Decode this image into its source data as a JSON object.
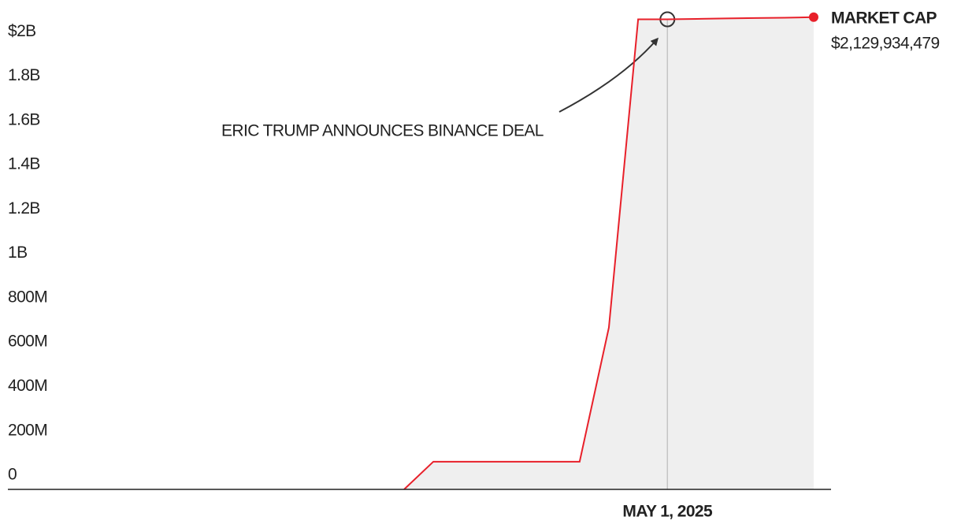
{
  "chart_data": {
    "type": "area",
    "annotation": "ERIC TRUMP ANNOUNCES BINANCE DEAL",
    "categories": [
      null,
      null,
      null,
      null,
      null,
      null,
      null,
      null,
      null,
      "MAY 1, 2025",
      null,
      null,
      null,
      null,
      null
    ],
    "series": [
      {
        "name": "MARKET CAP",
        "color": "#e8202a",
        "fill": "#efefef",
        "values": [
          0,
          125000000,
          125000000,
          125000000,
          125000000,
          125000000,
          125000000,
          730000000,
          2120000000,
          2120000000,
          2122000000,
          2124000000,
          2126000000,
          2127000000,
          2129934479
        ],
        "value_labels": [
          null,
          null,
          null,
          null,
          null,
          null,
          null,
          null,
          null,
          null,
          null,
          null,
          null,
          null,
          "$2,129,934,479"
        ]
      }
    ],
    "ylim": [
      0,
      2200000000
    ],
    "yticks": [
      {
        "value": 0,
        "label": "0"
      },
      {
        "value": 200000000,
        "label": "200M"
      },
      {
        "value": 400000000,
        "label": "400M"
      },
      {
        "value": 600000000,
        "label": "600M"
      },
      {
        "value": 800000000,
        "label": "800M"
      },
      {
        "value": 1000000000,
        "label": "1B"
      },
      {
        "value": 1200000000,
        "label": "1.2B"
      },
      {
        "value": 1400000000,
        "label": "1.4B"
      },
      {
        "value": 1600000000,
        "label": "1.6B"
      },
      {
        "value": 1800000000,
        "label": "1.8B"
      },
      {
        "value": 2000000000,
        "label": "$2B"
      }
    ]
  }
}
